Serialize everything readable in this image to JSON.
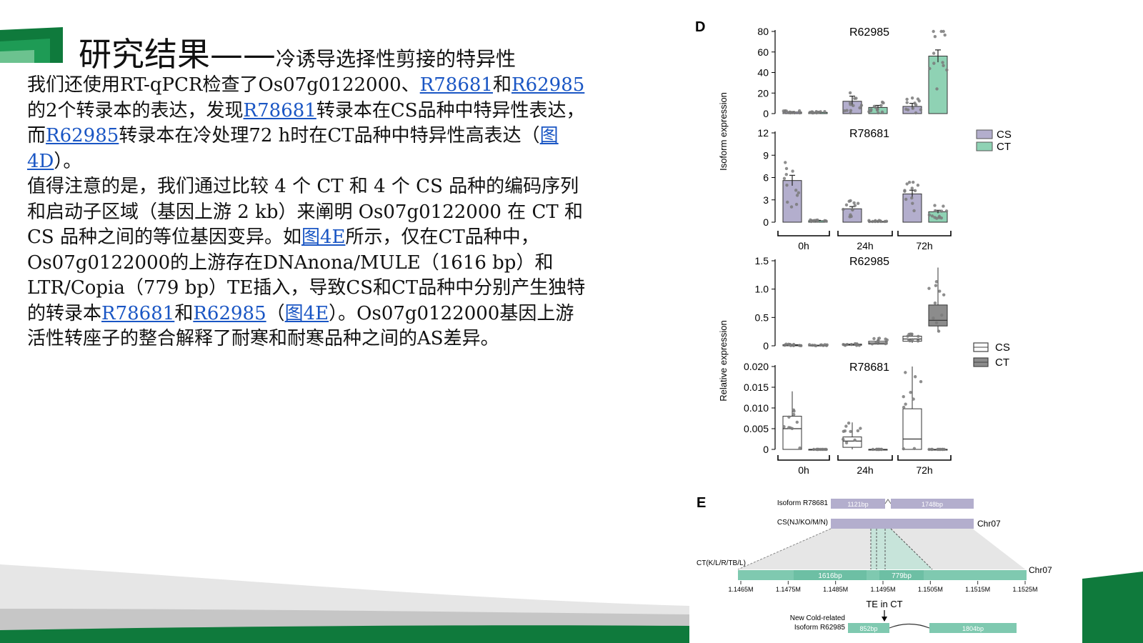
{
  "title": {
    "main": "研究结果——",
    "sub": "冷诱导选择性剪接的特异性"
  },
  "paragraph1": {
    "t1": "我们还使用RT-qPCR检查了Os07g0122000、",
    "link1": "R78681",
    "t2": "和",
    "link2": "R62985",
    "t3": "的2个转录本的表达，发现",
    "link3": "R78681",
    "t4": "转录本在CS品种中特异性表达，而",
    "link4": "R62985",
    "t5": "转录本在冷处理72 h时在CT品种中特异性高表达（",
    "link5": "图4D",
    "t6": "）。"
  },
  "paragraph2": {
    "t1": "值得注意的是，我们通过比较 4 个 CT 和 4 个 CS 品种的编码序列和启动子区域（基因上游 2 kb）来阐明 Os07g0122000 在 CT 和 CS 品种之间的等位基因变异。如",
    "link1": "图4E",
    "t2": "所示，仅在CT品种中，Os07g0122000的上游存在DNAnona/MULE（1616 bp）和LTR/Copia（779 bp）TE插入，导致CS和CT品种中分别产生独特的转录本",
    "link2": "R78681",
    "t3": "和",
    "link3": "R62985",
    "t4": "（",
    "link4": "图4E",
    "t5": "）。Os07g0122000基因上游活性转座子的整合解释了耐寒和耐寒品种之间的AS差异。"
  },
  "figure": {
    "panel_d": "D",
    "panel_e": "E",
    "legend": [
      "CS",
      "CT"
    ],
    "panel_e_labels": {
      "isoform_r78681": "Isoform R78681",
      "exon1": "1121bp",
      "exon2": "1748bp",
      "cs_label": "CS(NJ/KO/M/N)",
      "chr_cs": "Chr07",
      "ct_label": "CT(K/L/R/TB/L)",
      "chr_ct": "Chr07",
      "te1": "1616bp",
      "te2": "779bp",
      "coords": [
        "1.1465M",
        "1.1475M",
        "1.1485M",
        "1.1495M",
        "1.1505M",
        "1.1515M",
        "1.1525M"
      ],
      "te_in_ct": "TE in CT",
      "new_line1": "New Cold-related",
      "new_line2": "Isoform R62985",
      "ex3": "852bp",
      "ex4": "1804bp"
    },
    "colors": {
      "cs_bar": "#b3aecd",
      "ct_bar": "#8fd2b4",
      "ct_box": "#8c8c8c",
      "green_dark": "#0f7a3c",
      "green_band": "#7fc9b0"
    }
  },
  "chart_data": [
    {
      "type": "bar",
      "title": "R62985",
      "ylabel": "Isoform expression",
      "ylim": [
        0,
        80
      ],
      "yticks": [
        0,
        20,
        40,
        60,
        80
      ],
      "categories": [
        "0h",
        "24h",
        "72h"
      ],
      "series": [
        {
          "name": "CS",
          "values": [
            1.5,
            12,
            7
          ],
          "errors": [
            0.5,
            5,
            3
          ]
        },
        {
          "name": "CT",
          "values": [
            1.2,
            6,
            56
          ],
          "errors": [
            0.3,
            2,
            6
          ]
        }
      ]
    },
    {
      "type": "bar",
      "title": "R78681",
      "ylabel": "Isoform expression",
      "ylim": [
        0,
        12
      ],
      "yticks": [
        0,
        3,
        6,
        9,
        12
      ],
      "categories": [
        "0h",
        "24h",
        "72h"
      ],
      "series": [
        {
          "name": "CS",
          "values": [
            5.6,
            1.8,
            3.8
          ],
          "errors": [
            0.7,
            0.3,
            0.5
          ]
        },
        {
          "name": "CT",
          "values": [
            0.2,
            0.1,
            1.4
          ],
          "errors": [
            0.05,
            0.05,
            0.2
          ]
        }
      ]
    },
    {
      "type": "box",
      "title": "R62985",
      "ylabel": "Relative expression",
      "ylim": [
        0,
        1.5
      ],
      "yticks": [
        0,
        0.5,
        1.0,
        1.5
      ],
      "ytick_labels": [
        "0",
        "0.5",
        "1.0",
        "1.5"
      ],
      "categories": [
        "0h",
        "24h",
        "72h"
      ],
      "series": [
        {
          "name": "CS",
          "boxes": [
            [
              0,
              0,
              0.01,
              0.02,
              0.03
            ],
            [
              0,
              0.01,
              0.02,
              0.03,
              0.04
            ],
            [
              0.05,
              0.08,
              0.12,
              0.17,
              0.22
            ]
          ]
        },
        {
          "name": "CT",
          "boxes": [
            [
              0,
              0,
              0.005,
              0.01,
              0.02
            ],
            [
              0.02,
              0.03,
              0.05,
              0.08,
              0.15
            ],
            [
              0.25,
              0.35,
              0.45,
              0.72,
              1.38
            ]
          ]
        }
      ]
    },
    {
      "type": "box",
      "title": "R78681",
      "ylabel": "Relative expression",
      "ylim": [
        0,
        0.02
      ],
      "yticks": [
        0,
        0.005,
        0.01,
        0.015,
        0.02
      ],
      "ytick_labels": [
        "0",
        "0.005",
        "0.010",
        "0.015",
        "0.020"
      ],
      "categories": [
        "0h",
        "24h",
        "72h"
      ],
      "series": [
        {
          "name": "CS",
          "boxes": [
            [
              0,
              0,
              0.005,
              0.008,
              0.014
            ],
            [
              0,
              0.0005,
              0.002,
              0.003,
              0.0065
            ],
            [
              0,
              0,
              0.0025,
              0.0098,
              0.02
            ]
          ]
        },
        {
          "name": "CT",
          "boxes": [
            [
              0,
              0,
              0,
              0,
              0
            ],
            [
              0,
              0,
              0,
              0,
              0
            ],
            [
              0,
              0,
              0,
              0,
              0
            ]
          ]
        }
      ]
    }
  ]
}
